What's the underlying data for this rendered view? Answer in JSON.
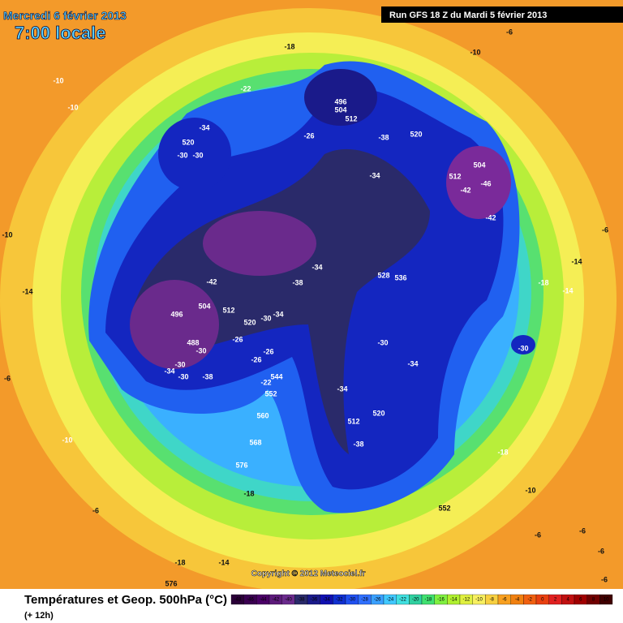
{
  "header": {
    "date": "Mercredi 6 février 2013",
    "time": "7:00 locale",
    "run": "Run GFS 18 Z du Mardi 5 février 2013"
  },
  "copyright": "Copyright © 2012 Meteociel.fr",
  "footer": {
    "title": "Températures et Geop. 500hPa (°C)",
    "lead": "(+ 12h)"
  },
  "map_labels": [
    -10,
    -10,
    -18,
    -22,
    -6,
    -10,
    -34,
    520,
    -30,
    -30,
    -26,
    496,
    504,
    512,
    -38,
    520,
    504,
    512,
    -46,
    -42,
    -42,
    -34,
    -34,
    -38,
    528,
    536,
    -42,
    496,
    504,
    512,
    520,
    -30,
    -34,
    488,
    -30,
    -26,
    -26,
    -26,
    -34,
    -30,
    -30,
    -38,
    544,
    -22,
    552,
    560,
    568,
    576,
    -18,
    -30,
    -34,
    -34,
    520,
    512,
    -38,
    -18,
    -10,
    552,
    -6,
    -6,
    -6,
    -6,
    -18,
    -14,
    576,
    -6,
    -10,
    -6,
    -10,
    -14,
    -6,
    -14,
    -18,
    -14,
    -30
  ],
  "colorbar": {
    "ticks": [
      -48,
      -46,
      -44,
      -42,
      -40,
      -38,
      -36,
      -34,
      -32,
      -30,
      -28,
      -26,
      -24,
      -22,
      -20,
      -18,
      -16,
      -14,
      -12,
      -10,
      -8,
      -6,
      -4,
      -2,
      0,
      2,
      4,
      6,
      8,
      10
    ],
    "colors": [
      "#2b0038",
      "#3a0050",
      "#4a0066",
      "#5c1a7a",
      "#6a2a8c",
      "#2a2a6a",
      "#1a1a8a",
      "#1010b0",
      "#1030d0",
      "#2050f0",
      "#3070ff",
      "#3aa0ff",
      "#40c8ff",
      "#40e0e0",
      "#30d0a0",
      "#40e070",
      "#80f040",
      "#b0f030",
      "#e0f040",
      "#f8f060",
      "#f8d040",
      "#f8a020",
      "#f08010",
      "#f06010",
      "#e84010",
      "#e02020",
      "#c01010",
      "#a00000",
      "#700000",
      "#400000"
    ]
  }
}
